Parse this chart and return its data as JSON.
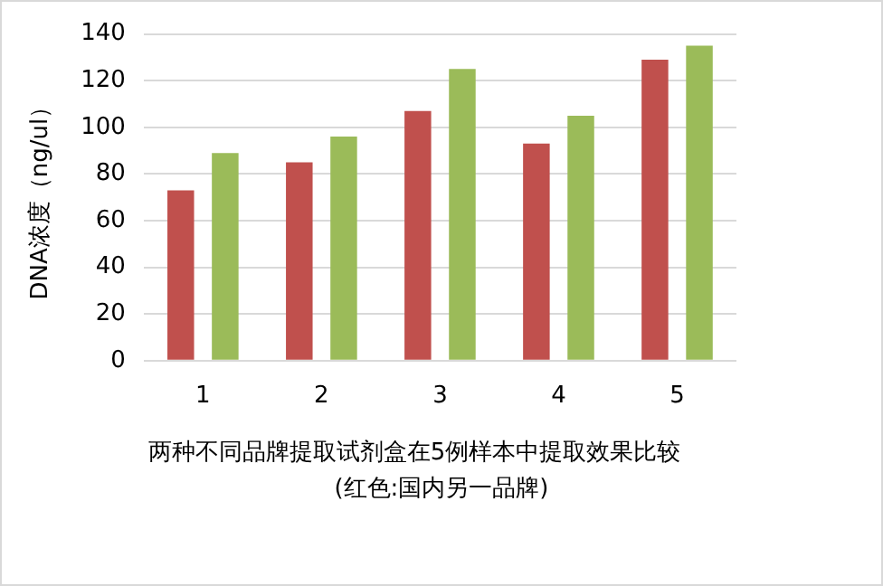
{
  "chart_data": {
    "type": "bar",
    "title": "两种不同品牌提取试剂盒在5例样本中提取效果比较",
    "ylabel": "DNA浓度（ng/ul）",
    "annotations": [
      "(红色:国内另一品牌)"
    ],
    "categories": [
      "1",
      "2",
      "3",
      "4",
      "5"
    ],
    "series": [
      {
        "color": "#c0504d",
        "values": [
          73,
          85,
          107,
          93,
          129
        ]
      },
      {
        "color": "#9bbb59",
        "values": [
          89,
          96,
          125,
          105,
          135
        ]
      }
    ],
    "ylim": [
      0,
      140
    ],
    "yticks": [
      0,
      20,
      40,
      60,
      80,
      100,
      120,
      140
    ],
    "grid": "y",
    "legend": false
  }
}
